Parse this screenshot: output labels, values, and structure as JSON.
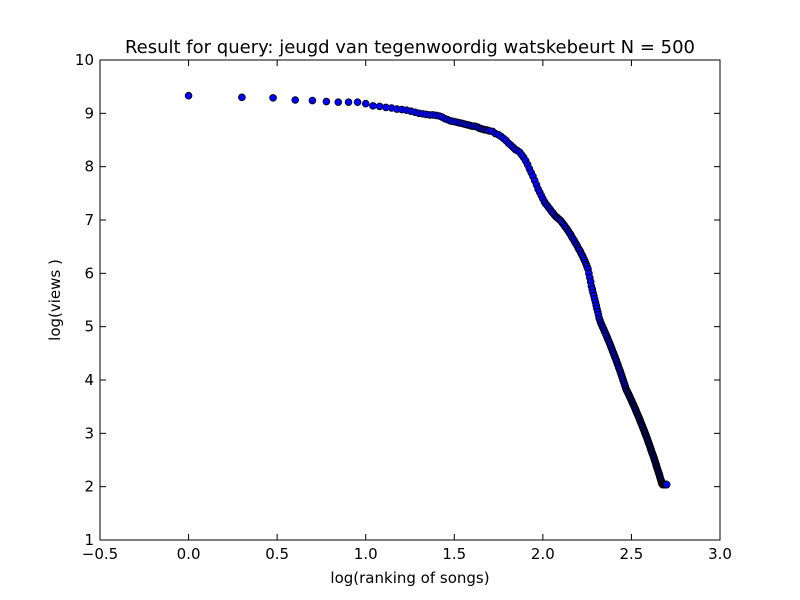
{
  "chart_data": {
    "type": "scatter",
    "title": "Result for query: jeugd van tegenwoordig watskebeurt N = 500",
    "xlabel": "log(ranking of songs)",
    "ylabel": "log(views )",
    "xlim": [
      -0.5,
      3.0
    ],
    "ylim": [
      1,
      10
    ],
    "xticks": [
      "−0.5",
      "0.0",
      "0.5",
      "1.0",
      "1.5",
      "2.0",
      "2.5",
      "3.0"
    ],
    "yticks": [
      "1",
      "2",
      "3",
      "4",
      "5",
      "6",
      "7",
      "8",
      "9",
      "10"
    ],
    "grid": false,
    "legend": "none",
    "marker_color": "#0000ff",
    "marker_edge": "#000000",
    "series": [
      {
        "x": [
          0.0,
          0.301,
          0.477,
          0.602,
          0.699,
          0.778,
          0.845,
          0.903,
          0.954,
          1.0,
          1.041,
          1.079,
          1.114,
          1.146,
          1.176,
          1.204,
          1.23,
          1.255,
          1.279,
          1.301,
          1.322,
          1.342,
          1.362,
          1.38,
          1.398,
          1.415,
          1.431,
          1.447,
          1.462,
          1.477,
          1.491,
          1.505,
          1.519,
          1.531,
          1.544,
          1.556,
          1.568,
          1.58,
          1.591,
          1.602,
          1.613,
          1.623,
          1.633,
          1.643,
          1.653,
          1.663,
          1.672,
          1.681,
          1.69,
          1.699,
          1.716,
          1.732,
          1.748,
          1.763,
          1.778,
          1.792,
          1.806,
          1.82,
          1.833,
          1.845,
          1.857,
          1.869,
          1.881,
          1.892,
          1.903,
          1.914,
          1.924,
          1.934,
          1.944,
          1.954,
          1.964,
          1.973,
          1.982,
          1.991,
          2.0,
          2.009,
          2.017,
          2.025,
          2.033,
          2.041,
          2.049,
          2.057,
          2.064,
          2.072,
          2.079,
          2.086,
          2.093,
          2.1,
          2.107,
          2.114,
          2.121,
          2.127,
          2.134,
          2.14,
          2.146,
          2.152,
          2.158,
          2.164,
          2.17,
          2.176,
          2.182,
          2.188,
          2.193,
          2.199,
          2.204,
          2.21,
          2.215,
          2.22,
          2.225,
          2.23,
          2.236,
          2.241,
          2.246,
          2.25,
          2.255,
          2.26,
          2.265,
          2.27,
          2.274,
          2.279,
          2.283,
          2.288,
          2.292,
          2.297,
          2.301,
          2.305,
          2.31,
          2.314,
          2.318,
          2.322,
          2.326,
          2.33,
          2.334,
          2.338,
          2.342,
          2.346,
          2.35,
          2.354,
          2.358,
          2.362,
          2.365,
          2.369,
          2.373,
          2.377,
          2.38,
          2.384,
          2.387,
          2.391,
          2.394,
          2.398,
          2.401,
          2.405,
          2.408,
          2.412,
          2.415,
          2.418,
          2.422,
          2.425,
          2.428,
          2.431,
          2.435,
          2.438,
          2.441,
          2.444,
          2.447,
          2.45,
          2.453,
          2.456,
          2.459,
          2.462,
          2.465,
          2.468,
          2.471,
          2.474,
          2.477,
          2.48,
          2.483,
          2.486,
          2.489,
          2.491,
          2.494,
          2.497,
          2.5,
          2.502,
          2.505,
          2.508,
          2.511,
          2.513,
          2.516,
          2.519,
          2.521,
          2.524,
          2.526,
          2.529,
          2.531,
          2.534,
          2.537,
          2.539,
          2.542,
          2.544,
          2.547,
          2.549,
          2.551,
          2.554,
          2.556,
          2.559,
          2.561,
          2.563,
          2.566,
          2.568,
          2.571,
          2.573,
          2.575,
          2.577,
          2.58,
          2.582,
          2.584,
          2.587,
          2.589,
          2.591,
          2.593,
          2.595,
          2.597,
          2.6,
          2.602,
          2.604,
          2.606,
          2.608,
          2.61,
          2.612,
          2.614,
          2.616,
          2.618,
          2.621,
          2.623,
          2.625,
          2.627,
          2.629,
          2.631,
          2.633,
          2.635,
          2.637,
          2.639,
          2.64,
          2.642,
          2.644,
          2.646,
          2.648,
          2.65,
          2.652,
          2.654,
          2.656,
          2.658,
          2.66,
          2.661,
          2.663,
          2.665,
          2.667,
          2.669,
          2.67,
          2.672,
          2.674,
          2.676,
          2.677,
          2.679,
          2.681,
          2.683,
          2.684,
          2.686,
          2.688,
          2.689,
          2.69,
          2.691,
          2.692,
          2.693,
          2.694,
          2.695,
          2.696,
          2.697,
          2.698,
          2.699
        ],
        "y": [
          9.33,
          9.3,
          9.29,
          9.25,
          9.24,
          9.22,
          9.21,
          9.21,
          9.21,
          9.18,
          9.14,
          9.13,
          9.11,
          9.1,
          9.08,
          9.07,
          9.06,
          9.04,
          9.02,
          9.0,
          8.99,
          8.98,
          8.97,
          8.97,
          8.96,
          8.95,
          8.93,
          8.9,
          8.88,
          8.86,
          8.85,
          8.84,
          8.83,
          8.82,
          8.81,
          8.8,
          8.79,
          8.78,
          8.77,
          8.76,
          8.76,
          8.75,
          8.74,
          8.72,
          8.71,
          8.7,
          8.69,
          8.69,
          8.68,
          8.67,
          8.66,
          8.62,
          8.6,
          8.57,
          8.53,
          8.49,
          8.44,
          8.4,
          8.36,
          8.32,
          8.3,
          8.27,
          8.22,
          8.17,
          8.11,
          8.04,
          7.96,
          7.89,
          7.82,
          7.74,
          7.66,
          7.58,
          7.52,
          7.46,
          7.4,
          7.34,
          7.3,
          7.27,
          7.23,
          7.2,
          7.16,
          7.13,
          7.1,
          7.07,
          7.05,
          7.03,
          7.01,
          6.99,
          6.96,
          6.93,
          6.9,
          6.87,
          6.84,
          6.81,
          6.78,
          6.75,
          6.72,
          6.68,
          6.65,
          6.62,
          6.58,
          6.55,
          6.52,
          6.48,
          6.45,
          6.42,
          6.38,
          6.35,
          6.32,
          6.28,
          6.24,
          6.2,
          6.16,
          6.12,
          6.08,
          6.0,
          5.92,
          5.84,
          5.76,
          5.7,
          5.64,
          5.58,
          5.52,
          5.46,
          5.4,
          5.34,
          5.28,
          5.22,
          5.16,
          5.12,
          5.08,
          5.05,
          5.02,
          4.99,
          4.96,
          4.93,
          4.9,
          4.87,
          4.84,
          4.81,
          4.78,
          4.75,
          4.72,
          4.69,
          4.66,
          4.63,
          4.6,
          4.57,
          4.54,
          4.51,
          4.48,
          4.45,
          4.42,
          4.39,
          4.36,
          4.33,
          4.3,
          4.27,
          4.24,
          4.21,
          4.18,
          4.15,
          4.12,
          4.09,
          4.06,
          4.03,
          4.0,
          3.97,
          3.94,
          3.91,
          3.88,
          3.85,
          3.82,
          3.8,
          3.78,
          3.76,
          3.74,
          3.72,
          3.7,
          3.68,
          3.66,
          3.64,
          3.62,
          3.6,
          3.58,
          3.56,
          3.54,
          3.52,
          3.5,
          3.48,
          3.46,
          3.44,
          3.42,
          3.4,
          3.38,
          3.36,
          3.34,
          3.32,
          3.3,
          3.28,
          3.26,
          3.24,
          3.22,
          3.2,
          3.18,
          3.16,
          3.14,
          3.12,
          3.1,
          3.08,
          3.06,
          3.04,
          3.02,
          3.0,
          2.98,
          2.96,
          2.94,
          2.92,
          2.9,
          2.88,
          2.86,
          2.84,
          2.82,
          2.8,
          2.78,
          2.76,
          2.74,
          2.72,
          2.7,
          2.68,
          2.66,
          2.64,
          2.62,
          2.6,
          2.58,
          2.56,
          2.54,
          2.52,
          2.5,
          2.48,
          2.46,
          2.44,
          2.42,
          2.4,
          2.38,
          2.36,
          2.34,
          2.32,
          2.3,
          2.28,
          2.26,
          2.24,
          2.22,
          2.2,
          2.18,
          2.16,
          2.14,
          2.12,
          2.1,
          2.08,
          2.06,
          2.05,
          2.04,
          2.04,
          2.04,
          2.04,
          2.04,
          2.04,
          2.04,
          2.04,
          2.04,
          2.04,
          2.04,
          2.04,
          2.04,
          2.04,
          2.04,
          2.04,
          2.04,
          2.04,
          2.04
        ]
      }
    ]
  }
}
